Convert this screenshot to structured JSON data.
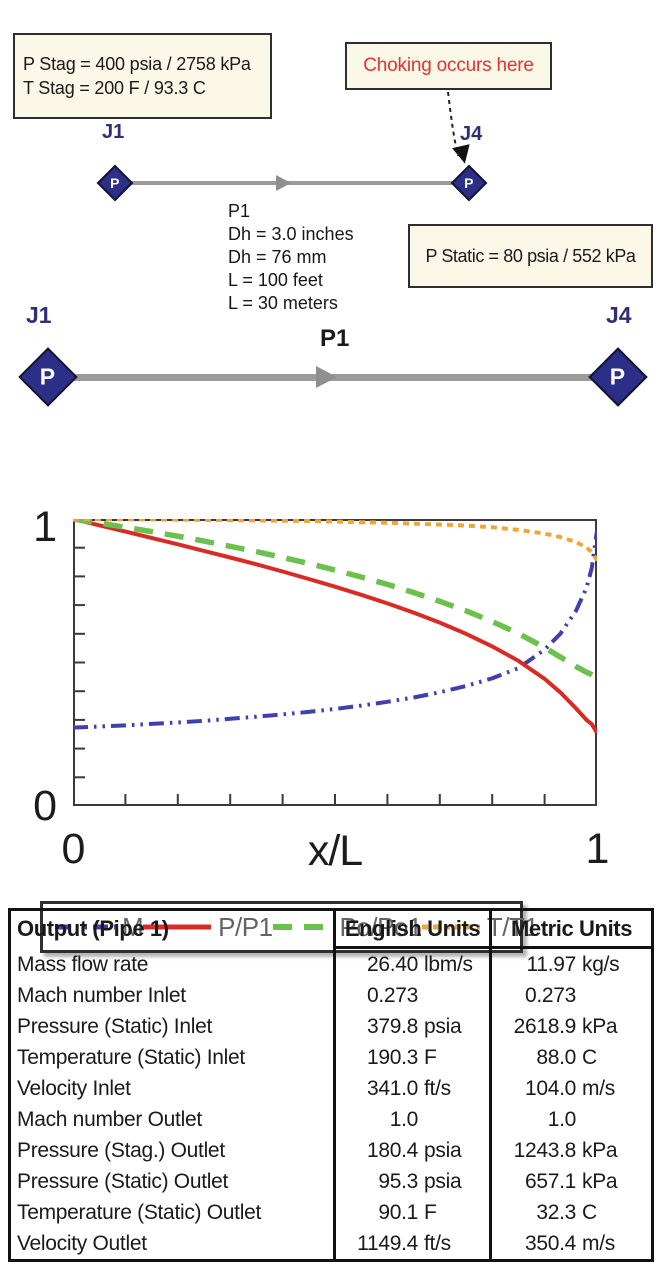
{
  "colors": {
    "junction_fill": "#2c2f87",
    "junction_label": "#2f2f72",
    "pipe_gray": "#9b9b9b",
    "note_bg": "#fcf8e7",
    "choke_red": "#e03333"
  },
  "diagram_top": {
    "stag_box": {
      "line1": "P Stag = 400 psia / 2758 kPa",
      "line2": "T Stag = 200 F / 93.3 C"
    },
    "choke_box": {
      "text": "Choking occurs here"
    },
    "junction_start": {
      "id": "J1",
      "symbol": "P"
    },
    "junction_end": {
      "id": "J4",
      "symbol": "P"
    },
    "pipe_label": "P1",
    "pipe_props": [
      "Dh = 3.0 inches",
      "Dh = 76 mm",
      "L = 100 feet",
      "L = 30 meters"
    ],
    "static_box": {
      "text": "P Static = 80 psia / 552 kPa"
    }
  },
  "diagram_model": {
    "junction_start": {
      "id": "J1",
      "symbol": "P"
    },
    "junction_end": {
      "id": "J4",
      "symbol": "P"
    },
    "pipe_label": "P1"
  },
  "chart_data": {
    "type": "line",
    "title": "",
    "xlabel": "x/L",
    "ylabel": "",
    "xlim": [
      0,
      1
    ],
    "ylim": [
      0,
      1
    ],
    "x_tick_labels": [
      "0",
      "1"
    ],
    "y_tick_labels": [
      "0",
      "1"
    ],
    "grid": false,
    "legend_position": "top",
    "x": [
      0,
      0.05,
      0.1,
      0.15,
      0.2,
      0.25,
      0.3,
      0.35,
      0.4,
      0.45,
      0.5,
      0.55,
      0.6,
      0.65,
      0.7,
      0.75,
      0.8,
      0.85,
      0.9,
      0.93,
      0.96,
      0.98,
      0.99,
      1.0
    ],
    "series": [
      {
        "name": "M",
        "color": "#3f3fae",
        "dash": "dashdotdot",
        "y": [
          0.273,
          0.277,
          0.281,
          0.286,
          0.291,
          0.297,
          0.304,
          0.311,
          0.319,
          0.328,
          0.338,
          0.35,
          0.363,
          0.378,
          0.396,
          0.418,
          0.445,
          0.48,
          0.545,
          0.6,
          0.68,
          0.76,
          0.83,
          0.96
        ]
      },
      {
        "name": "P/P1",
        "color": "#d92b25",
        "dash": "solid",
        "y": [
          1.0,
          0.978,
          0.956,
          0.934,
          0.912,
          0.889,
          0.866,
          0.842,
          0.817,
          0.791,
          0.764,
          0.736,
          0.706,
          0.674,
          0.639,
          0.6,
          0.556,
          0.506,
          0.443,
          0.396,
          0.34,
          0.3,
          0.285,
          0.255
        ]
      },
      {
        "name": "Po/Po1",
        "color": "#6dbf4e",
        "dash": "dash",
        "y": [
          1.0,
          0.986,
          0.971,
          0.956,
          0.94,
          0.923,
          0.905,
          0.886,
          0.866,
          0.845,
          0.822,
          0.798,
          0.772,
          0.744,
          0.713,
          0.68,
          0.643,
          0.601,
          0.552,
          0.519,
          0.486,
          0.466,
          0.458,
          0.448
        ]
      },
      {
        "name": "T/T1",
        "color": "#efa636",
        "dash": "dot",
        "y": [
          1.0,
          0.9995,
          0.999,
          0.9985,
          0.998,
          0.997,
          0.996,
          0.995,
          0.994,
          0.993,
          0.991,
          0.989,
          0.987,
          0.984,
          0.981,
          0.977,
          0.971,
          0.962,
          0.949,
          0.937,
          0.92,
          0.9,
          0.885,
          0.855
        ]
      }
    ]
  },
  "table": {
    "title": "Output (Pipe 1)",
    "col_headers": [
      "English Units",
      "Metric Units"
    ],
    "rows": [
      {
        "label": "Mass flow rate",
        "english": {
          "num": "26.40",
          "unit": "lbm/s"
        },
        "metric": {
          "num": "11.97",
          "unit": "kg/s"
        }
      },
      {
        "label": "Mach number Inlet",
        "english": {
          "num": "0.273",
          "unit": ""
        },
        "metric": {
          "num": "0.273",
          "unit": ""
        }
      },
      {
        "label": "Pressure (Static) Inlet",
        "english": {
          "num": "379.8",
          "unit": "psia"
        },
        "metric": {
          "num": "2618.9",
          "unit": "kPa"
        }
      },
      {
        "label": "Temperature (Static) Inlet",
        "english": {
          "num": "190.3",
          "unit": "F"
        },
        "metric": {
          "num": "88.0",
          "unit": "C"
        }
      },
      {
        "label": "Velocity Inlet",
        "english": {
          "num": "341.0",
          "unit": "ft/s"
        },
        "metric": {
          "num": "104.0",
          "unit": "m/s"
        }
      },
      {
        "label": "Mach number Outlet",
        "english": {
          "num": "1.0",
          "unit": ""
        },
        "metric": {
          "num": "1.0",
          "unit": ""
        }
      },
      {
        "label": "Pressure (Stag.) Outlet",
        "english": {
          "num": "180.4",
          "unit": "psia"
        },
        "metric": {
          "num": "1243.8",
          "unit": "kPa"
        }
      },
      {
        "label": "Pressure (Static) Outlet",
        "english": {
          "num": "95.3",
          "unit": "psia"
        },
        "metric": {
          "num": "657.1",
          "unit": "kPa"
        }
      },
      {
        "label": "Temperature (Static) Outlet",
        "english": {
          "num": "90.1",
          "unit": "F"
        },
        "metric": {
          "num": "32.3",
          "unit": "C"
        }
      },
      {
        "label": "Velocity Outlet",
        "english": {
          "num": "1149.4",
          "unit": "ft/s"
        },
        "metric": {
          "num": "350.4",
          "unit": "m/s"
        }
      }
    ]
  }
}
